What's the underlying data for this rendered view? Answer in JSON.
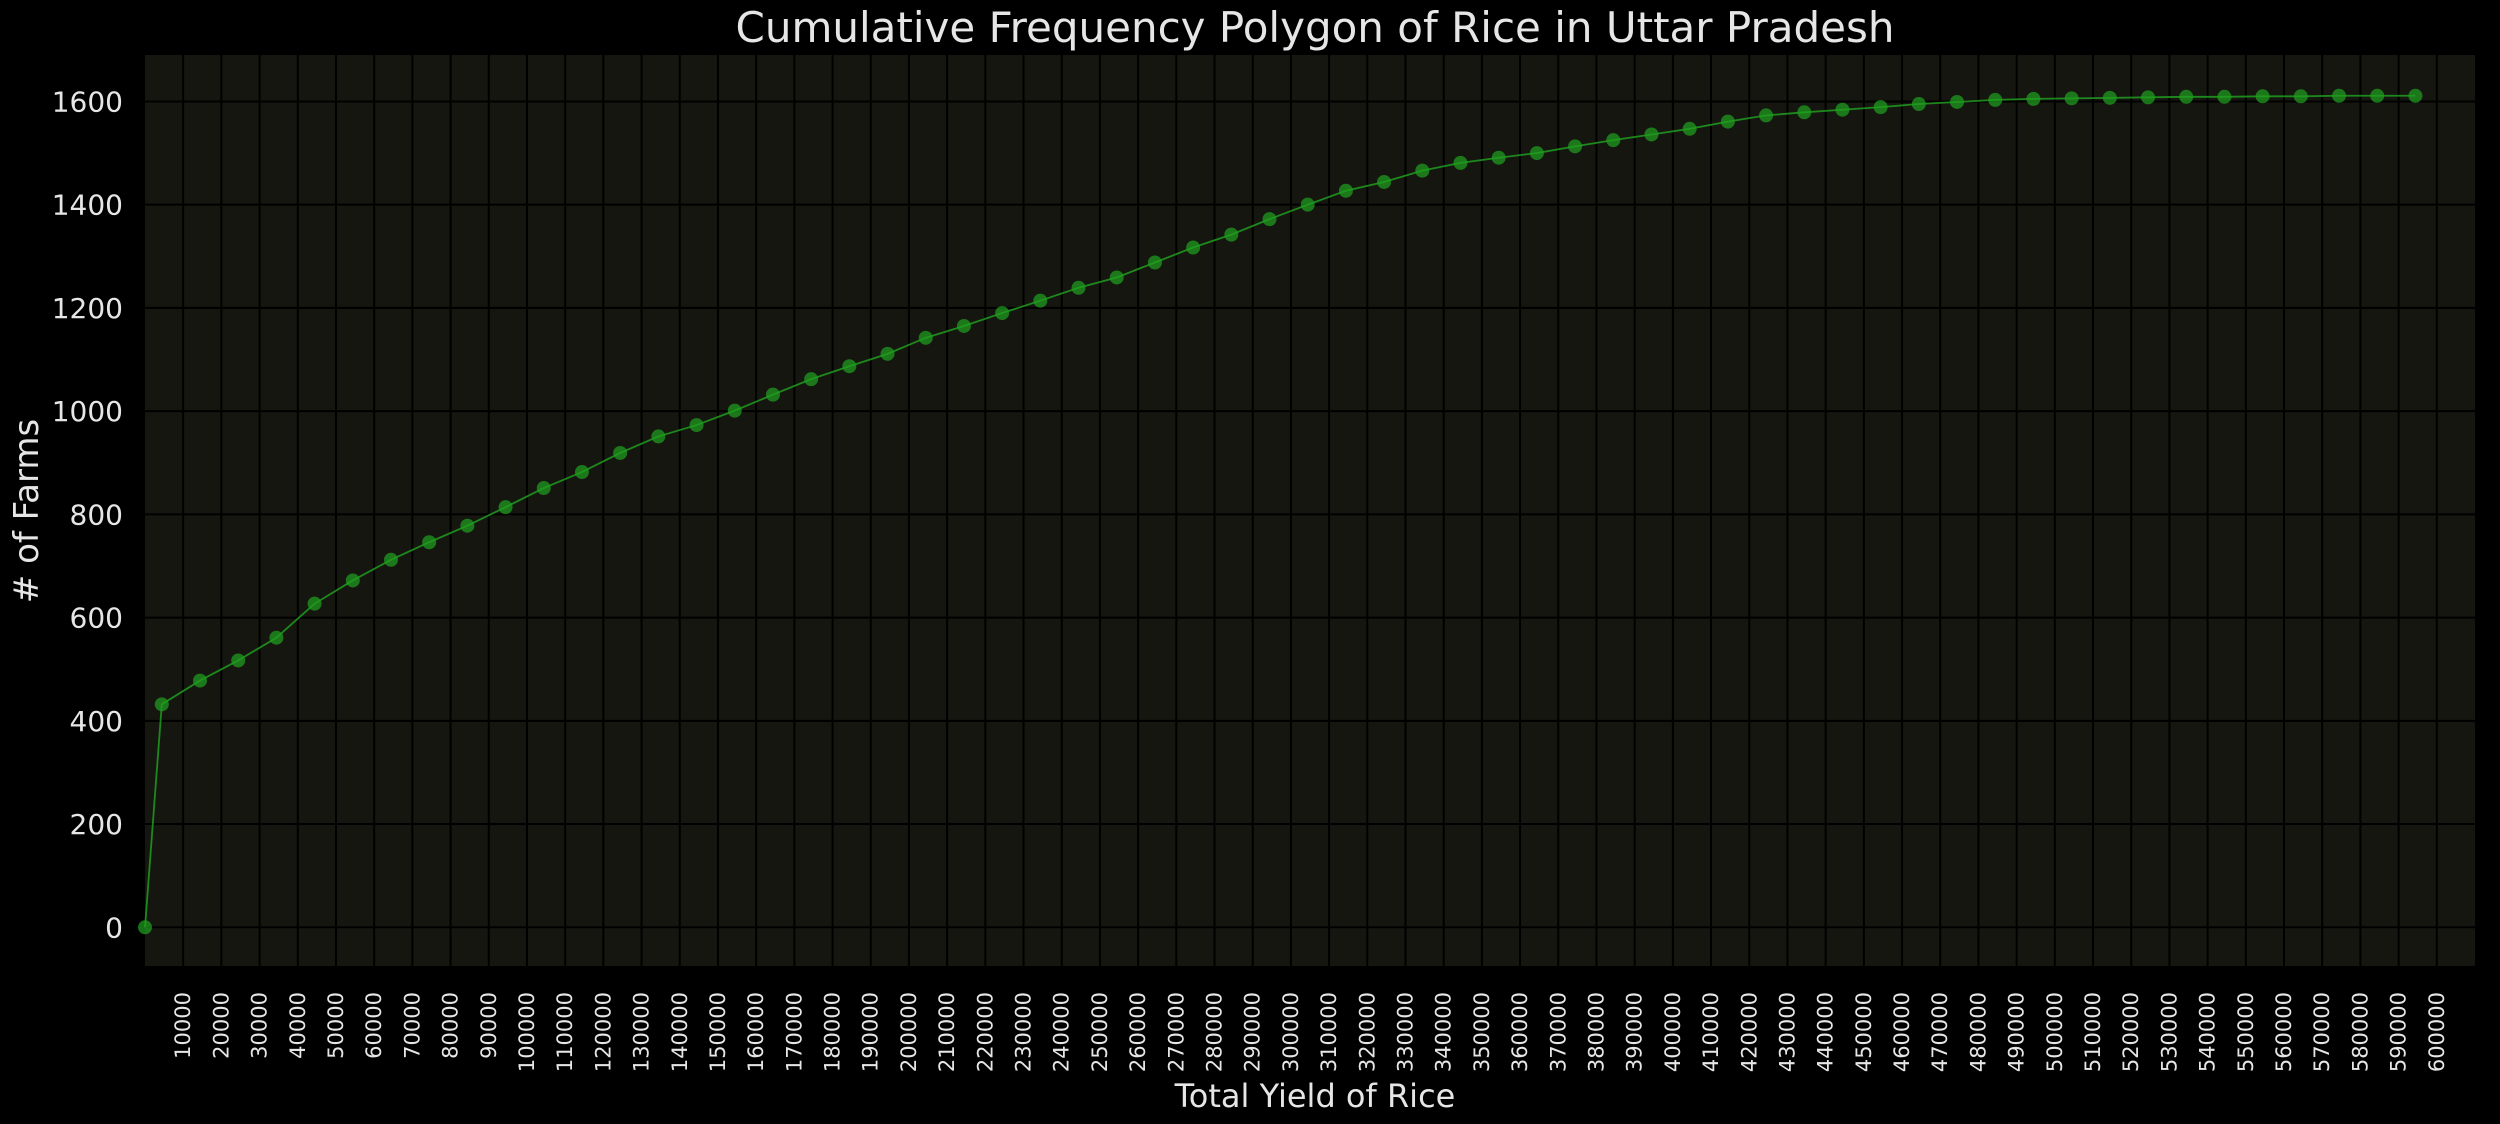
{
  "chart_data": {
    "type": "line",
    "title": "Cumulative Frequency Polygon of Rice in Uttar Pradesh",
    "xlabel": "Total Yield of Rice",
    "ylabel": "# of Farms",
    "xlim": [
      0,
      610000
    ],
    "ylim": [
      -75,
      1690
    ],
    "grid": true,
    "x_ticks": [
      10000,
      20000,
      30000,
      40000,
      50000,
      60000,
      70000,
      80000,
      90000,
      100000,
      110000,
      120000,
      130000,
      140000,
      150000,
      160000,
      170000,
      180000,
      190000,
      200000,
      210000,
      220000,
      230000,
      240000,
      250000,
      260000,
      270000,
      280000,
      290000,
      300000,
      310000,
      320000,
      330000,
      340000,
      350000,
      360000,
      370000,
      380000,
      390000,
      400000,
      410000,
      420000,
      430000,
      440000,
      450000,
      460000,
      470000,
      480000,
      490000,
      500000,
      510000,
      520000,
      530000,
      540000,
      550000,
      560000,
      570000,
      580000,
      590000,
      600000
    ],
    "y_ticks": [
      0,
      200,
      400,
      600,
      800,
      1000,
      1200,
      1400,
      1600
    ],
    "series": [
      {
        "color": "#1f9e1f",
        "x": [
          0,
          4400,
          14400,
          24400,
          34400,
          44400,
          54400,
          64400,
          74400,
          84400,
          94400,
          104400,
          114400,
          124400,
          134400,
          144400,
          154400,
          164400,
          174400,
          184400,
          194400,
          204400,
          214400,
          224400,
          234400,
          244400,
          254400,
          264400,
          274400,
          284400,
          294400,
          304400,
          314400,
          324400,
          334400,
          344400,
          354400,
          364400,
          374400,
          384400,
          394400,
          404400,
          414400,
          424400,
          434400,
          444400,
          454400,
          464400,
          474400,
          484400,
          494400,
          504400,
          514400,
          524400,
          534400,
          544400,
          554400,
          564400,
          574400,
          584400,
          594400
        ],
        "y": [
          0,
          432,
          478,
          517,
          561,
          627,
          672,
          712,
          746,
          778,
          814,
          851,
          882,
          919,
          951,
          973,
          1001,
          1032,
          1062,
          1087,
          1111,
          1142,
          1165,
          1190,
          1214,
          1239,
          1259,
          1288,
          1317,
          1342,
          1372,
          1400,
          1427,
          1444,
          1466,
          1481,
          1491,
          1500,
          1513,
          1525,
          1536,
          1547,
          1561,
          1573,
          1579,
          1584,
          1589,
          1595,
          1599,
          1603,
          1605,
          1606,
          1607,
          1608,
          1609,
          1609,
          1610,
          1610,
          1611,
          1611,
          1611
        ]
      }
    ]
  }
}
